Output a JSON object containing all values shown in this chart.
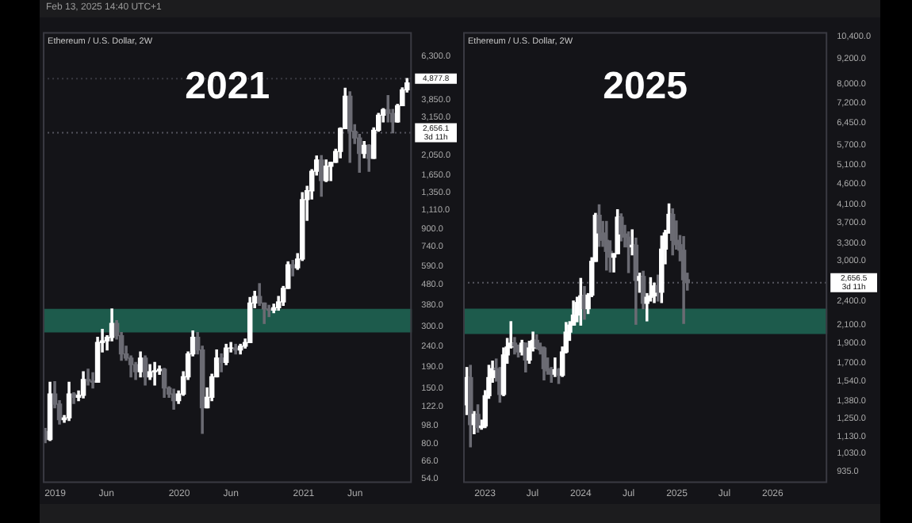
{
  "chart_data": [
    {
      "type": "candlestick",
      "title": "2021",
      "subtitle": "Ethereum / U.S. Dollar, 2W",
      "log": true,
      "annotations": [
        "Feb 13, 2025 14:40 UTC+1"
      ],
      "ref_lines": [
        {
          "axis": "y",
          "value": 4877.8,
          "label": "4,877.8",
          "color": "#3a3a42",
          "line_style": "dotted"
        },
        {
          "axis": "y",
          "value": 2656.1,
          "label": "2,656.1\n3d 11h",
          "color": "#55555e",
          "line_style": "dotted"
        }
      ],
      "colors": [
        "#6b6b73",
        "#ffffff",
        "#6b6b73",
        "#6b6b73",
        "#ffffff",
        "#ffffff",
        "#6b6b73",
        "#ffffff",
        "#ffffff",
        "#6b6b73",
        "#6b6b73",
        "#ffffff",
        "#ffffff",
        "#ffffff",
        "#ffffff",
        "#6b6b73",
        "#6b6b73",
        "#6b6b73",
        "#6b6b73",
        "#6b6b73",
        "#ffffff",
        "#6b6b73",
        "#ffffff",
        "#ffffff",
        "#ffffff",
        "#6b6b73",
        "#6b6b73",
        "#6b6b73",
        "#ffffff",
        "#ffffff",
        "#ffffff",
        "#ffffff",
        "#6b6b73",
        "#6b6b73",
        "#ffffff",
        "#ffffff",
        "#ffffff",
        "#6b6b73",
        "#ffffff",
        "#ffffff",
        "#6b6b73",
        "#ffffff",
        "#ffffff",
        "#ffffff",
        "#ffffff",
        "#6b6b73",
        "#6b6b73",
        "#6b6b73",
        "#ffffff",
        "#ffffff",
        "#ffffff",
        "#ffffff",
        "#6b6b73",
        "#ffffff",
        "#ffffff",
        "#ffffff",
        "#ffffff",
        "#ffffff",
        "#6b6b73",
        "#ffffff",
        "#ffffff",
        "#ffffff",
        "#ffffff",
        "#ffffff",
        "#6b6b73",
        "#6b6b73",
        "#6b6b73",
        "#ffffff",
        "#6b6b73",
        "#ffffff",
        "#ffffff",
        "#ffffff",
        "#6b6b73",
        "#6b6b73",
        "#ffffff",
        "#ffffff",
        "#ffffff"
      ],
      "bands": [
        {
          "axis": "y",
          "from": 280,
          "to": 365,
          "color": "#1d5b4c"
        }
      ],
      "xlim": [
        "2018-11-26",
        "2021-11-15"
      ],
      "xticks": [
        {
          "value": "2019-01-01",
          "label": "2019"
        },
        {
          "value": "2019-06-01",
          "label": "Jun"
        },
        {
          "value": "2020-01-01",
          "label": "2020"
        },
        {
          "value": "2020-06-01",
          "label": "Jun"
        },
        {
          "value": "2021-01-01",
          "label": "2021"
        },
        {
          "value": "2021-06-01",
          "label": "Jun"
        }
      ],
      "ylim": [
        51.4,
        8230
      ],
      "yticks": [
        {
          "value": 6300,
          "label": "6,300.0"
        },
        {
          "value": 3850,
          "label": "3,850.0"
        },
        {
          "value": 3150,
          "label": "3,150.0"
        },
        {
          "value": 2050,
          "label": "2,050.0"
        },
        {
          "value": 1650,
          "label": "1,650.0"
        },
        {
          "value": 1350,
          "label": "1,350.0"
        },
        {
          "value": 1110,
          "label": "1,110.0"
        },
        {
          "value": 900,
          "label": "900.0"
        },
        {
          "value": 740,
          "label": "740.0"
        },
        {
          "value": 590,
          "label": "590.0"
        },
        {
          "value": 480,
          "label": "480.0"
        },
        {
          "value": 380,
          "label": "380.0"
        },
        {
          "value": 300,
          "label": "300.0"
        },
        {
          "value": 240,
          "label": "240.0"
        },
        {
          "value": 190,
          "label": "190.0"
        },
        {
          "value": 150,
          "label": "150.0"
        },
        {
          "value": 122,
          "label": "122.0"
        },
        {
          "value": 98,
          "label": "98.0"
        },
        {
          "value": 80,
          "label": "80.0"
        },
        {
          "value": 66,
          "label": "66.0"
        },
        {
          "value": 54,
          "label": "54.0"
        }
      ],
      "x": [
        "2018-12-03",
        "2018-12-17",
        "2018-12-31",
        "2019-01-14",
        "2019-01-28",
        "2019-02-11",
        "2019-02-25",
        "2019-03-11",
        "2019-03-25",
        "2019-04-08",
        "2019-04-22",
        "2019-05-06",
        "2019-05-20",
        "2019-06-03",
        "2019-06-17",
        "2019-07-01",
        "2019-07-15",
        "2019-07-29",
        "2019-08-12",
        "2019-08-26",
        "2019-09-09",
        "2019-09-23",
        "2019-10-07",
        "2019-10-21",
        "2019-11-04",
        "2019-11-18",
        "2019-12-02",
        "2019-12-16",
        "2019-12-30",
        "2020-01-13",
        "2020-01-27",
        "2020-02-10",
        "2020-02-24",
        "2020-03-09",
        "2020-03-23",
        "2020-04-06",
        "2020-04-20",
        "2020-05-04",
        "2020-05-18",
        "2020-06-01",
        "2020-06-15",
        "2020-06-29",
        "2020-07-13",
        "2020-07-27",
        "2020-08-10",
        "2020-08-24",
        "2020-09-07",
        "2020-09-21",
        "2020-10-05",
        "2020-10-19",
        "2020-11-02",
        "2020-11-16",
        "2020-11-30",
        "2020-12-14",
        "2020-12-28",
        "2021-01-11",
        "2021-01-25",
        "2021-02-08",
        "2021-02-22",
        "2021-03-08",
        "2021-03-22",
        "2021-04-05",
        "2021-04-19",
        "2021-05-03",
        "2021-05-17",
        "2021-05-31",
        "2021-06-14",
        "2021-06-28",
        "2021-07-12",
        "2021-07-26",
        "2021-08-09",
        "2021-08-23",
        "2021-09-06",
        "2021-09-20",
        "2021-10-04",
        "2021-10-18",
        "2021-11-01"
      ],
      "ohlc": [
        [
          92,
          95,
          81,
          84
        ],
        [
          84,
          160,
          83,
          140
        ],
        [
          140,
          161,
          120,
          125
        ],
        [
          125,
          130,
          100,
          105
        ],
        [
          105,
          110,
          102,
          107
        ],
        [
          107,
          160,
          104,
          140
        ],
        [
          140,
          142,
          126,
          135
        ],
        [
          135,
          145,
          130,
          138
        ],
        [
          138,
          180,
          134,
          165
        ],
        [
          165,
          185,
          155,
          162
        ],
        [
          162,
          178,
          150,
          160
        ],
        [
          160,
          265,
          160,
          250
        ],
        [
          250,
          290,
          225,
          255
        ],
        [
          255,
          270,
          230,
          265
        ],
        [
          265,
          365,
          255,
          310
        ],
        [
          310,
          320,
          260,
          270
        ],
        [
          270,
          280,
          205,
          220
        ],
        [
          220,
          240,
          205,
          210
        ],
        [
          210,
          215,
          170,
          195
        ],
        [
          195,
          200,
          165,
          180
        ],
        [
          180,
          225,
          170,
          210
        ],
        [
          210,
          215,
          155,
          170
        ],
        [
          170,
          195,
          165,
          180
        ],
        [
          180,
          200,
          155,
          182
        ],
        [
          182,
          192,
          175,
          185
        ],
        [
          185,
          187,
          135,
          150
        ],
        [
          150,
          152,
          135,
          140
        ],
        [
          140,
          148,
          118,
          130
        ],
        [
          130,
          145,
          126,
          140
        ],
        [
          140,
          180,
          138,
          170
        ],
        [
          170,
          225,
          165,
          220
        ],
        [
          220,
          285,
          215,
          265
        ],
        [
          265,
          280,
          220,
          230
        ],
        [
          230,
          240,
          90,
          120
        ],
        [
          120,
          150,
          120,
          135
        ],
        [
          135,
          175,
          130,
          170
        ],
        [
          170,
          230,
          170,
          210
        ],
        [
          210,
          220,
          180,
          200
        ],
        [
          200,
          245,
          195,
          235
        ],
        [
          235,
          250,
          225,
          235
        ],
        [
          235,
          245,
          220,
          230
        ],
        [
          230,
          245,
          220,
          240
        ],
        [
          240,
          260,
          235,
          250
        ],
        [
          250,
          415,
          250,
          390
        ],
        [
          390,
          445,
          370,
          420
        ],
        [
          420,
          485,
          380,
          390
        ],
        [
          390,
          390,
          310,
          365
        ],
        [
          365,
          380,
          335,
          360
        ],
        [
          360,
          385,
          350,
          370
        ],
        [
          370,
          420,
          360,
          395
        ],
        [
          395,
          470,
          380,
          460
        ],
        [
          460,
          620,
          460,
          600
        ],
        [
          600,
          630,
          530,
          580
        ],
        [
          580,
          680,
          570,
          640
        ],
        [
          640,
          1350,
          630,
          1250
        ],
        [
          1250,
          1450,
          990,
          1380
        ],
        [
          1380,
          1750,
          1260,
          1720
        ],
        [
          1720,
          2040,
          1650,
          1950
        ],
        [
          1950,
          2050,
          1300,
          1550
        ],
        [
          1550,
          1950,
          1530,
          1820
        ],
        [
          1820,
          1900,
          1550,
          1900
        ],
        [
          1900,
          2200,
          1900,
          2150
        ],
        [
          2150,
          2800,
          2000,
          2780
        ],
        [
          2780,
          4380,
          2780,
          4000
        ],
        [
          4000,
          4200,
          1900,
          2700
        ],
        [
          2700,
          2900,
          2350,
          2500
        ],
        [
          2500,
          2600,
          1700,
          2100
        ],
        [
          2100,
          2400,
          2000,
          2300
        ],
        [
          2300,
          2320,
          1720,
          1990
        ],
        [
          1990,
          2800,
          1990,
          2730
        ],
        [
          2730,
          3300,
          2700,
          3230
        ],
        [
          3230,
          3480,
          3000,
          3440
        ],
        [
          3440,
          4030,
          3000,
          3300
        ],
        [
          3300,
          3450,
          2650,
          3000
        ],
        [
          3000,
          3650,
          2990,
          3600
        ],
        [
          3600,
          4400,
          3600,
          4300
        ],
        [
          4300,
          4877.8,
          4200,
          4650
        ]
      ]
    },
    {
      "type": "candlestick",
      "title": "2025",
      "subtitle": "Ethereum / U.S. Dollar, 2W",
      "log": true,
      "ref_lines": [
        {
          "axis": "y",
          "value": 2656.5,
          "label": "2,656.5\n3d 11h",
          "color": "#55555e",
          "line_style": "dotted"
        }
      ],
      "colors": [
        "#ffffff",
        "#6b6b73",
        "#ffffff",
        "#6b6b73",
        "#ffffff",
        "#ffffff",
        "#ffffff",
        "#ffffff",
        "#6b6b73",
        "#6b6b73",
        "#ffffff",
        "#ffffff",
        "#ffffff",
        "#6b6b73",
        "#6b6b73",
        "#ffffff",
        "#6b6b73",
        "#ffffff",
        "#ffffff",
        "#6b6b73",
        "#6b6b73",
        "#6b6b73",
        "#6b6b73",
        "#6b6b73",
        "#ffffff",
        "#6b6b73",
        "#ffffff",
        "#ffffff",
        "#ffffff",
        "#ffffff",
        "#ffffff",
        "#ffffff",
        "#6b6b73",
        "#ffffff",
        "#ffffff",
        "#ffffff",
        "#6b6b73",
        "#6b6b73",
        "#6b6b73",
        "#6b6b73",
        "#ffffff",
        "#ffffff",
        "#6b6b73",
        "#6b6b73",
        "#6b6b73",
        "#ffffff",
        "#6b6b73",
        "#ffffff",
        "#6b6b73",
        "#ffffff",
        "#ffffff",
        "#ffffff",
        "#6b6b73",
        "#ffffff",
        "#ffffff",
        "#ffffff",
        "#6b6b73",
        "#6b6b73",
        "#6b6b73",
        "#6b6b73",
        "#6b6b73"
      ],
      "bands": [
        {
          "axis": "y",
          "from": 2000,
          "to": 2300,
          "color": "#1d5b4c"
        }
      ],
      "xlim": [
        "2022-10-10",
        "2026-07-28"
      ],
      "xticks": [
        {
          "value": "2023-01-01",
          "label": "2023"
        },
        {
          "value": "2023-07-01",
          "label": "Jul"
        },
        {
          "value": "2024-01-01",
          "label": "2024"
        },
        {
          "value": "2024-07-01",
          "label": "Jul"
        },
        {
          "value": "2025-01-01",
          "label": "2025"
        },
        {
          "value": "2025-07-01",
          "label": "Jul"
        },
        {
          "value": "2026-01-01",
          "label": "2026"
        }
      ],
      "ylim": [
        875,
        10650
      ],
      "yticks": [
        {
          "value": 10400,
          "label": "10,400.0"
        },
        {
          "value": 9200,
          "label": "9,200.0"
        },
        {
          "value": 8000,
          "label": "8,000.0"
        },
        {
          "value": 7200,
          "label": "7,200.0"
        },
        {
          "value": 6450,
          "label": "6,450.0"
        },
        {
          "value": 5700,
          "label": "5,700.0"
        },
        {
          "value": 5100,
          "label": "5,100.0"
        },
        {
          "value": 4600,
          "label": "4,600.0"
        },
        {
          "value": 4100,
          "label": "4,100.0"
        },
        {
          "value": 3700,
          "label": "3,700.0"
        },
        {
          "value": 3300,
          "label": "3,300.0"
        },
        {
          "value": 3000,
          "label": "3,000.0"
        },
        {
          "value": 2400,
          "label": "2,400.0"
        },
        {
          "value": 2100,
          "label": "2,100.0"
        },
        {
          "value": 1900,
          "label": "1,900.0"
        },
        {
          "value": 1700,
          "label": "1,700.0"
        },
        {
          "value": 1540,
          "label": "1,540.0"
        },
        {
          "value": 1380,
          "label": "1,380.0"
        },
        {
          "value": 1250,
          "label": "1,250.0"
        },
        {
          "value": 1130,
          "label": "1,130.0"
        },
        {
          "value": 1030,
          "label": "1,030.0"
        },
        {
          "value": 935,
          "label": "935.0"
        }
      ],
      "x": [
        "2022-10-24",
        "2022-11-07",
        "2022-11-21",
        "2022-12-05",
        "2022-12-19",
        "2023-01-02",
        "2023-01-16",
        "2023-01-30",
        "2023-02-13",
        "2023-02-27",
        "2023-03-13",
        "2023-03-27",
        "2023-04-10",
        "2023-04-24",
        "2023-05-08",
        "2023-05-22",
        "2023-06-05",
        "2023-06-19",
        "2023-07-03",
        "2023-07-17",
        "2023-07-31",
        "2023-08-14",
        "2023-08-28",
        "2023-09-11",
        "2023-09-25",
        "2023-10-09",
        "2023-10-23",
        "2023-11-06",
        "2023-11-20",
        "2023-12-04",
        "2023-12-18",
        "2024-01-01",
        "2024-01-15",
        "2024-01-29",
        "2024-02-12",
        "2024-02-26",
        "2024-03-11",
        "2024-03-25",
        "2024-04-08",
        "2024-04-22",
        "2024-05-06",
        "2024-05-20",
        "2024-06-03",
        "2024-06-17",
        "2024-07-01",
        "2024-07-15",
        "2024-07-29",
        "2024-08-12",
        "2024-08-26",
        "2024-09-09",
        "2024-09-23",
        "2024-10-07",
        "2024-10-21",
        "2024-11-04",
        "2024-11-18",
        "2024-12-02",
        "2024-12-16",
        "2024-12-30",
        "2025-01-13",
        "2025-01-27",
        "2025-02-10"
      ],
      "ohlc": [
        [
          1350,
          1660,
          1280,
          1570
        ],
        [
          1570,
          1680,
          1070,
          1210
        ],
        [
          1210,
          1300,
          1150,
          1280
        ],
        [
          1280,
          1350,
          1160,
          1190
        ],
        [
          1190,
          1240,
          1180,
          1200
        ],
        [
          1200,
          1460,
          1190,
          1420
        ],
        [
          1420,
          1680,
          1400,
          1570
        ],
        [
          1570,
          1720,
          1530,
          1650
        ],
        [
          1650,
          1740,
          1540,
          1640
        ],
        [
          1640,
          1660,
          1370,
          1430
        ],
        [
          1430,
          1850,
          1420,
          1780
        ],
        [
          1780,
          1950,
          1700,
          1860
        ],
        [
          1860,
          2140,
          1850,
          1900
        ],
        [
          1900,
          1960,
          1790,
          1870
        ],
        [
          1870,
          1880,
          1760,
          1810
        ],
        [
          1810,
          1930,
          1780,
          1900
        ],
        [
          1900,
          1900,
          1620,
          1730
        ],
        [
          1730,
          1920,
          1700,
          1850
        ],
        [
          1850,
          2020,
          1820,
          1930
        ],
        [
          1930,
          1990,
          1840,
          1860
        ],
        [
          1860,
          1900,
          1790,
          1830
        ],
        [
          1850,
          1860,
          1550,
          1650
        ],
        [
          1650,
          1750,
          1600,
          1630
        ],
        [
          1630,
          1660,
          1530,
          1600
        ],
        [
          1600,
          1750,
          1580,
          1640
        ],
        [
          1640,
          1650,
          1520,
          1590
        ],
        [
          1590,
          1860,
          1580,
          1810
        ],
        [
          1810,
          2130,
          1800,
          2020
        ],
        [
          2020,
          2140,
          1930,
          2100
        ],
        [
          2100,
          2400,
          2100,
          2220
        ],
        [
          2220,
          2450,
          2140,
          2380
        ],
        [
          2380,
          2720,
          2100,
          2470
        ],
        [
          2470,
          2600,
          2170,
          2300
        ],
        [
          2300,
          2500,
          2240,
          2480
        ],
        [
          2480,
          3050,
          2460,
          2990
        ],
        [
          2990,
          3900,
          2990,
          3860
        ],
        [
          3860,
          4090,
          3250,
          3500
        ],
        [
          3500,
          3730,
          3250,
          3360
        ],
        [
          3360,
          3730,
          2850,
          3160
        ],
        [
          3160,
          3350,
          2820,
          3060
        ],
        [
          3060,
          3120,
          2820,
          3120
        ],
        [
          3120,
          3980,
          3120,
          3820
        ],
        [
          3820,
          3890,
          3350,
          3480
        ],
        [
          3480,
          3650,
          3240,
          3420
        ],
        [
          3420,
          3520,
          2810,
          3240
        ],
        [
          3240,
          3560,
          3100,
          3270
        ],
        [
          3270,
          3400,
          2110,
          2690
        ],
        [
          2690,
          2800,
          2520,
          2750
        ],
        [
          2750,
          2830,
          2300,
          2370
        ],
        [
          2370,
          2500,
          2150,
          2450
        ],
        [
          2450,
          2730,
          2400,
          2470
        ],
        [
          2470,
          2650,
          2380,
          2610
        ],
        [
          2610,
          2770,
          2400,
          2520
        ],
        [
          2520,
          3440,
          2380,
          3200
        ],
        [
          3200,
          3550,
          2950,
          3500
        ],
        [
          3500,
          4110,
          3500,
          3880
        ],
        [
          3880,
          4000,
          3100,
          3360
        ],
        [
          3360,
          3740,
          3200,
          3280
        ],
        [
          3280,
          3450,
          3000,
          3180
        ],
        [
          3180,
          3430,
          2120,
          2700
        ],
        [
          2700,
          2800,
          2550,
          2656
        ]
      ]
    }
  ]
}
